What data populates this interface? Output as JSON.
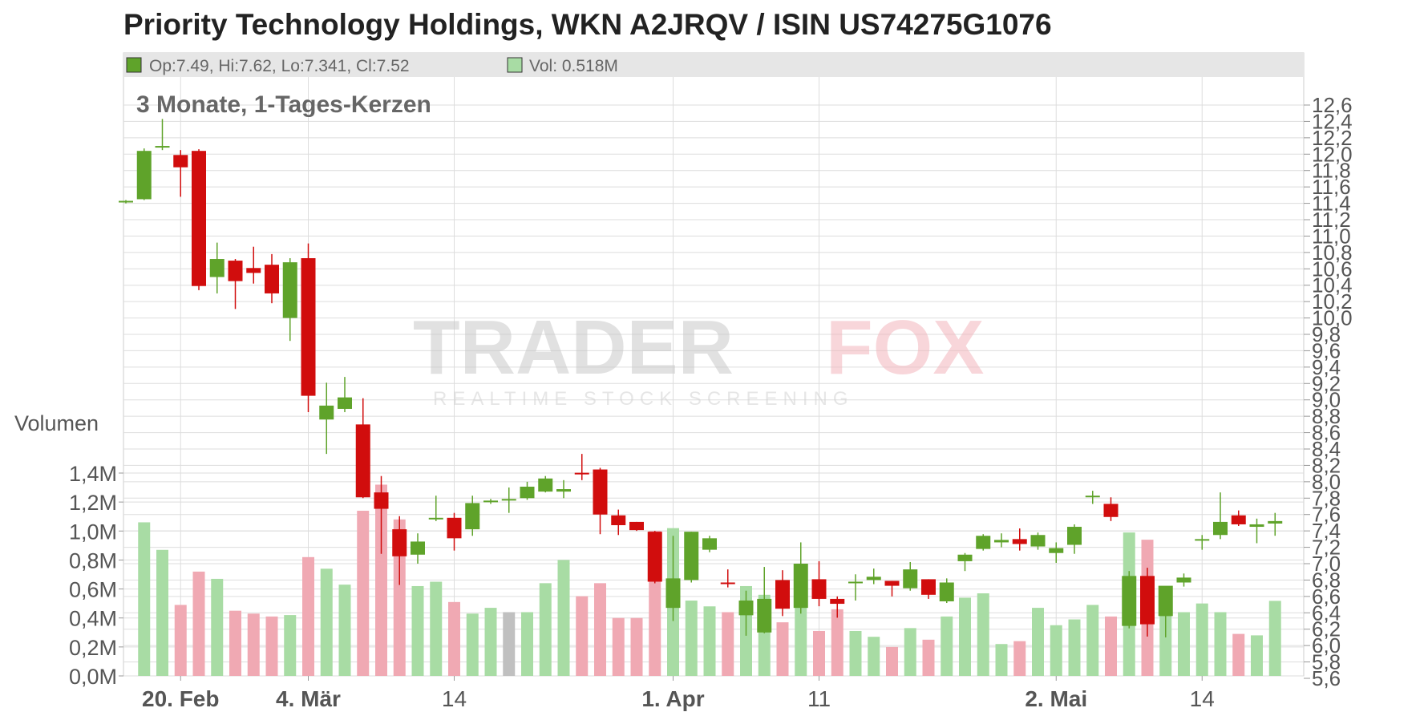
{
  "title": "Priority Technology Holdings, WKN A2JRQV / ISIN US74275G1076",
  "header": {
    "ohlc_text": "Op:7.49, Hi:7.62, Lo:7.341, Cl:7.52",
    "vol_text": "Vol: 0.518M",
    "ohlc_swatch_color": "#5fa32a",
    "vol_swatch_color": "#a8dca4"
  },
  "subtitle": "3 Monate, 1-Tages-Kerzen",
  "volume_axis_label": "Volumen",
  "watermark": {
    "brand_left": "TRADER",
    "brand_right": "FOX",
    "tagline": "REALTIME STOCK SCREENING"
  },
  "colors": {
    "up": "#5fa32a",
    "down": "#d10d0d",
    "vol_up": "#a8dca4",
    "vol_down": "#f0a9b3",
    "vol_neutral": "#c0c0c0",
    "grid": "#dddddd"
  },
  "chart_data": {
    "type": "candlestick",
    "title": "Priority Technology Holdings, WKN A2JRQV / ISIN US74275G1076",
    "subtitle": "3 Monate, 1-Tages-Kerzen",
    "price_axis": {
      "ylim": [
        5.6,
        12.6
      ],
      "ticks": [
        "12,6",
        "12,4",
        "12,2",
        "12,0",
        "11,8",
        "11,6",
        "11,4",
        "11,2",
        "11,0",
        "10,8",
        "10,6",
        "10,4",
        "10,2",
        "10,0",
        "9,8",
        "9,6",
        "9,4",
        "9,2",
        "9,0",
        "8,8",
        "8,6",
        "8,4",
        "8,2",
        "8,0",
        "7,8",
        "7,6",
        "7,4",
        "7,2",
        "7,0",
        "6,8",
        "6,6",
        "6,4",
        "6,2",
        "6,0",
        "5,8",
        "5,6"
      ],
      "position": "right"
    },
    "volume_axis": {
      "label": "Volumen",
      "ylim": [
        0,
        1.4
      ],
      "unit": "M",
      "ticks": [
        "1,4M",
        "1,2M",
        "1,0M",
        "0,8M",
        "0,6M",
        "0,4M",
        "0,2M",
        "0,0M"
      ],
      "position": "left"
    },
    "x_labels": [
      {
        "text": "20. Feb",
        "index": 3,
        "bold": true
      },
      {
        "text": "4. Mär",
        "index": 10,
        "bold": true
      },
      {
        "text": "14",
        "index": 18,
        "bold": false
      },
      {
        "text": "1. Apr",
        "index": 30,
        "bold": true
      },
      {
        "text": "11",
        "index": 38,
        "bold": false
      },
      {
        "text": "2. Mai",
        "index": 51,
        "bold": true
      },
      {
        "text": "14",
        "index": 59,
        "bold": false
      }
    ],
    "grid": true,
    "candles": [
      {
        "o": 11.42,
        "h": 11.44,
        "l": 11.4,
        "c": 11.43,
        "v": null
      },
      {
        "o": 11.45,
        "h": 12.07,
        "l": 11.44,
        "c": 12.04,
        "v": 1.06
      },
      {
        "o": 12.09,
        "h": 12.43,
        "l": 12.05,
        "c": 12.1,
        "v": 0.87
      },
      {
        "o": 11.99,
        "h": 12.05,
        "l": 11.48,
        "c": 11.84,
        "v": 0.49
      },
      {
        "o": 12.04,
        "h": 12.06,
        "l": 10.34,
        "c": 10.39,
        "v": 0.72
      },
      {
        "o": 10.5,
        "h": 10.92,
        "l": 10.3,
        "c": 10.72,
        "v": 0.67
      },
      {
        "o": 10.7,
        "h": 10.72,
        "l": 10.11,
        "c": 10.45,
        "v": 0.45
      },
      {
        "o": 10.61,
        "h": 10.87,
        "l": 10.42,
        "c": 10.55,
        "v": 0.43
      },
      {
        "o": 10.65,
        "h": 10.78,
        "l": 10.18,
        "c": 10.3,
        "v": 0.41
      },
      {
        "o": 10.0,
        "h": 10.73,
        "l": 9.72,
        "c": 10.68,
        "v": 0.42
      },
      {
        "o": 10.73,
        "h": 10.91,
        "l": 8.85,
        "c": 9.05,
        "v": 0.82
      },
      {
        "o": 8.76,
        "h": 9.21,
        "l": 8.34,
        "c": 8.93,
        "v": 0.74
      },
      {
        "o": 8.89,
        "h": 9.28,
        "l": 8.85,
        "c": 9.03,
        "v": 0.63
      },
      {
        "o": 8.7,
        "h": 9.02,
        "l": 7.8,
        "c": 7.81,
        "v": 1.14
      },
      {
        "o": 7.87,
        "h": 8.07,
        "l": 7.12,
        "c": 7.67,
        "v": 1.32
      },
      {
        "o": 7.42,
        "h": 7.58,
        "l": 6.74,
        "c": 7.09,
        "v": 1.08
      },
      {
        "o": 7.11,
        "h": 7.37,
        "l": 7.0,
        "c": 7.27,
        "v": 0.62
      },
      {
        "o": 7.55,
        "h": 7.83,
        "l": 7.52,
        "c": 7.56,
        "v": 0.65
      },
      {
        "o": 7.56,
        "h": 7.62,
        "l": 7.16,
        "c": 7.31,
        "v": 0.51
      },
      {
        "o": 7.42,
        "h": 7.83,
        "l": 7.34,
        "c": 7.74,
        "v": 0.43
      },
      {
        "o": 7.75,
        "h": 7.79,
        "l": 7.73,
        "c": 7.77,
        "v": 0.47
      },
      {
        "o": 7.79,
        "h": 7.93,
        "l": 7.62,
        "c": 7.79,
        "v": 0.44
      },
      {
        "o": 7.8,
        "h": 8.0,
        "l": 7.78,
        "c": 7.94,
        "v": 0.44
      },
      {
        "o": 7.88,
        "h": 8.07,
        "l": 7.87,
        "c": 8.04,
        "v": 0.64
      },
      {
        "o": 7.88,
        "h": 8.02,
        "l": 7.8,
        "c": 7.91,
        "v": 0.8
      },
      {
        "o": 8.11,
        "h": 8.34,
        "l": 8.02,
        "c": 8.09,
        "v": 0.55
      },
      {
        "o": 8.15,
        "h": 8.17,
        "l": 7.36,
        "c": 7.6,
        "v": 0.64
      },
      {
        "o": 7.59,
        "h": 7.66,
        "l": 7.35,
        "c": 7.47,
        "v": 0.4
      },
      {
        "o": 7.51,
        "h": 7.51,
        "l": 7.4,
        "c": 7.41,
        "v": 0.4
      },
      {
        "o": 7.39,
        "h": 7.4,
        "l": 6.76,
        "c": 6.78,
        "v": 1.0
      },
      {
        "o": 6.46,
        "h": 7.34,
        "l": 6.3,
        "c": 6.82,
        "v": 1.02
      },
      {
        "o": 6.8,
        "h": 7.39,
        "l": 6.77,
        "c": 7.39,
        "v": 0.52
      },
      {
        "o": 7.17,
        "h": 7.34,
        "l": 7.14,
        "c": 7.31,
        "v": 0.48
      },
      {
        "o": 6.77,
        "h": 6.93,
        "l": 6.71,
        "c": 6.76,
        "v": 0.44
      },
      {
        "o": 6.37,
        "h": 6.67,
        "l": 6.12,
        "c": 6.55,
        "v": 0.62
      },
      {
        "o": 6.16,
        "h": 6.96,
        "l": 6.15,
        "c": 6.57,
        "v": 0.56
      },
      {
        "o": 6.8,
        "h": 6.92,
        "l": 6.36,
        "c": 6.45,
        "v": 0.37
      },
      {
        "o": 6.46,
        "h": 7.26,
        "l": 6.39,
        "c": 7.0,
        "v": 0.57
      },
      {
        "o": 6.81,
        "h": 7.03,
        "l": 6.48,
        "c": 6.57,
        "v": 0.31
      },
      {
        "o": 6.57,
        "h": 6.6,
        "l": 6.34,
        "c": 6.51,
        "v": 0.46
      },
      {
        "o": 6.77,
        "h": 6.87,
        "l": 6.55,
        "c": 6.78,
        "v": 0.31
      },
      {
        "o": 6.8,
        "h": 6.94,
        "l": 6.75,
        "c": 6.84,
        "v": 0.27
      },
      {
        "o": 6.79,
        "h": 6.79,
        "l": 6.6,
        "c": 6.73,
        "v": 0.2
      },
      {
        "o": 6.7,
        "h": 7.02,
        "l": 6.67,
        "c": 6.93,
        "v": 0.33
      },
      {
        "o": 6.81,
        "h": 6.81,
        "l": 6.57,
        "c": 6.62,
        "v": 0.25
      },
      {
        "o": 6.54,
        "h": 6.82,
        "l": 6.52,
        "c": 6.77,
        "v": 0.41
      },
      {
        "o": 7.03,
        "h": 7.13,
        "l": 6.91,
        "c": 7.11,
        "v": 0.54
      },
      {
        "o": 7.18,
        "h": 7.36,
        "l": 7.16,
        "c": 7.34,
        "v": 0.57
      },
      {
        "o": 7.26,
        "h": 7.37,
        "l": 7.2,
        "c": 7.29,
        "v": 0.22
      },
      {
        "o": 7.3,
        "h": 7.43,
        "l": 7.16,
        "c": 7.24,
        "v": 0.24
      },
      {
        "o": 7.21,
        "h": 7.38,
        "l": 7.17,
        "c": 7.35,
        "v": 0.47
      },
      {
        "o": 7.13,
        "h": 7.26,
        "l": 7.01,
        "c": 7.19,
        "v": 0.35
      },
      {
        "o": 7.23,
        "h": 7.48,
        "l": 7.12,
        "c": 7.45,
        "v": 0.39
      },
      {
        "o": 7.82,
        "h": 7.89,
        "l": 7.73,
        "c": 7.83,
        "v": 0.49
      },
      {
        "o": 7.73,
        "h": 7.81,
        "l": 7.52,
        "c": 7.57,
        "v": 0.41
      },
      {
        "o": 6.24,
        "h": 6.91,
        "l": 6.21,
        "c": 6.85,
        "v": 0.99
      },
      {
        "o": 6.85,
        "h": 6.95,
        "l": 6.11,
        "c": 6.26,
        "v": 0.94
      },
      {
        "o": 6.36,
        "h": 6.68,
        "l": 6.1,
        "c": 6.73,
        "v": 0.61
      },
      {
        "o": 6.77,
        "h": 6.88,
        "l": 6.72,
        "c": 6.83,
        "v": 0.44
      },
      {
        "o": 7.29,
        "h": 7.35,
        "l": 7.17,
        "c": 7.3,
        "v": 0.5
      },
      {
        "o": 7.35,
        "h": 7.87,
        "l": 7.3,
        "c": 7.51,
        "v": 0.44
      },
      {
        "o": 7.59,
        "h": 7.65,
        "l": 7.46,
        "c": 7.48,
        "v": 0.29
      },
      {
        "o": 7.45,
        "h": 7.55,
        "l": 7.25,
        "c": 7.48,
        "v": 0.28
      },
      {
        "o": 7.49,
        "h": 7.62,
        "l": 7.341,
        "c": 7.52,
        "v": 0.518
      }
    ]
  }
}
